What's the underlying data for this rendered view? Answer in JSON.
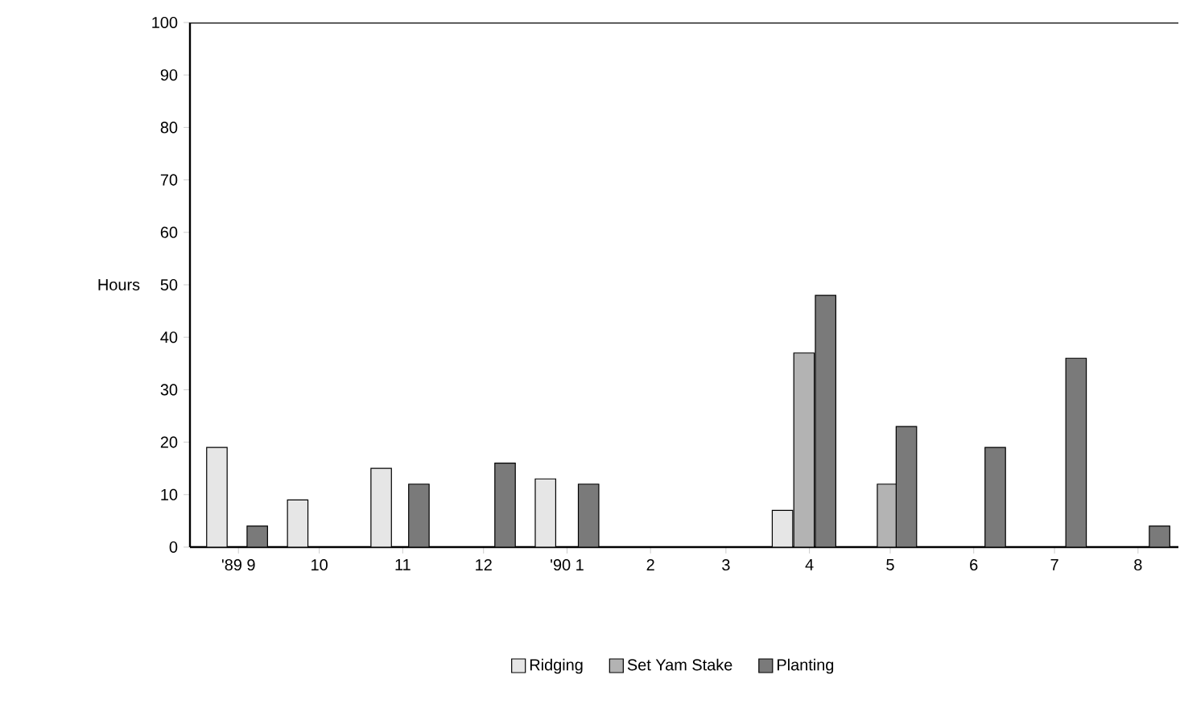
{
  "chart_data": {
    "type": "bar",
    "ylabel": "Hours",
    "xlim": [
      "1989-08-14",
      "1990-08-16"
    ],
    "ylim": [
      0,
      100
    ],
    "xticks": [
      {
        "value": "1989-09",
        "label": "'89 9"
      },
      {
        "value": "1989-10",
        "label": "10"
      },
      {
        "value": "1989-11",
        "label": "11"
      },
      {
        "value": "1989-12",
        "label": "12"
      },
      {
        "value": "1990-01",
        "label": "'90 1"
      },
      {
        "value": "1990-02",
        "label": "2"
      },
      {
        "value": "1990-03",
        "label": "3"
      },
      {
        "value": "1990-04",
        "label": "4"
      },
      {
        "value": "1990-05",
        "label": "5"
      },
      {
        "value": "1990-06",
        "label": "6"
      },
      {
        "value": "1990-07",
        "label": "7"
      },
      {
        "value": "1990-08",
        "label": "8"
      }
    ],
    "yticks": [
      0,
      10,
      20,
      30,
      40,
      50,
      60,
      70,
      80,
      90,
      100
    ],
    "legend": "bottom",
    "series": [
      {
        "name": "Ridging",
        "color": "#e6e6e6",
        "x": [
          "1989-08-24",
          "1989-09-23",
          "1989-10-24",
          "1989-12-24",
          "1990-03-22"
        ],
        "values": [
          19,
          9,
          15,
          13,
          7
        ]
      },
      {
        "name": "Set Yam Stake",
        "color": "#b3b3b3",
        "x": [
          "1990-03-30",
          "1990-04-30"
        ],
        "values": [
          37,
          12
        ]
      },
      {
        "name": "Planting",
        "color": "#7a7a7a",
        "x": [
          "1989-09-08",
          "1989-11-07",
          "1989-12-09",
          "1990-01-09",
          "1990-04-07",
          "1990-05-07",
          "1990-06-09",
          "1990-07-09",
          "1990-08-09"
        ],
        "values": [
          4,
          12,
          16,
          12,
          48,
          23,
          19,
          36,
          4
        ]
      }
    ]
  }
}
